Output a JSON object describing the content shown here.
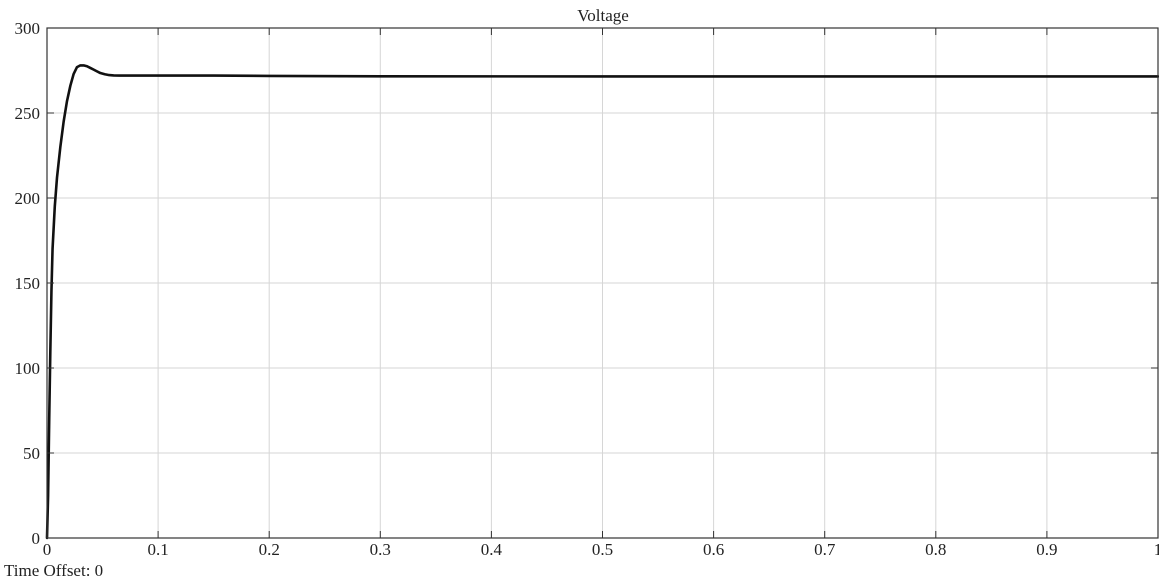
{
  "chart_data": {
    "type": "line",
    "title": "Voltage",
    "xlabel": "",
    "ylabel": "",
    "xlim": [
      0,
      1
    ],
    "ylim": [
      0,
      300
    ],
    "x_ticks": [
      0,
      0.1,
      0.2,
      0.3,
      0.4,
      0.5,
      0.6,
      0.7,
      0.8,
      0.9,
      1
    ],
    "x_tick_labels": [
      "0",
      "0.1",
      "0.2",
      "0.3",
      "0.4",
      "0.5",
      "0.6",
      "0.7",
      "0.8",
      "0.9",
      "1"
    ],
    "y_ticks": [
      0,
      50,
      100,
      150,
      200,
      250,
      300
    ],
    "y_tick_labels": [
      "0",
      "50",
      "100",
      "150",
      "200",
      "250",
      "300"
    ],
    "grid": true,
    "series": [
      {
        "color": "#111111",
        "x": [
          0,
          0.001,
          0.002,
          0.003,
          0.004,
          0.005,
          0.007,
          0.009,
          0.012,
          0.015,
          0.018,
          0.021,
          0.024,
          0.027,
          0.03,
          0.033,
          0.036,
          0.039,
          0.042,
          0.045,
          0.048,
          0.052,
          0.056,
          0.06,
          0.065,
          0.07,
          0.08,
          0.1,
          0.15,
          0.2,
          0.3,
          0.5,
          0.7,
          1.0
        ],
        "y": [
          0,
          25,
          70,
          110,
          145,
          170,
          195,
          212,
          230,
          245,
          257,
          266,
          273,
          277,
          278,
          278,
          277.5,
          276.5,
          275.5,
          274.5,
          273.5,
          272.8,
          272.3,
          272.1,
          272,
          272,
          272,
          272,
          272,
          271.8,
          271.6,
          271.5,
          271.5,
          271.5
        ]
      }
    ]
  },
  "footer": {
    "time_offset": "Time Offset: 0"
  }
}
